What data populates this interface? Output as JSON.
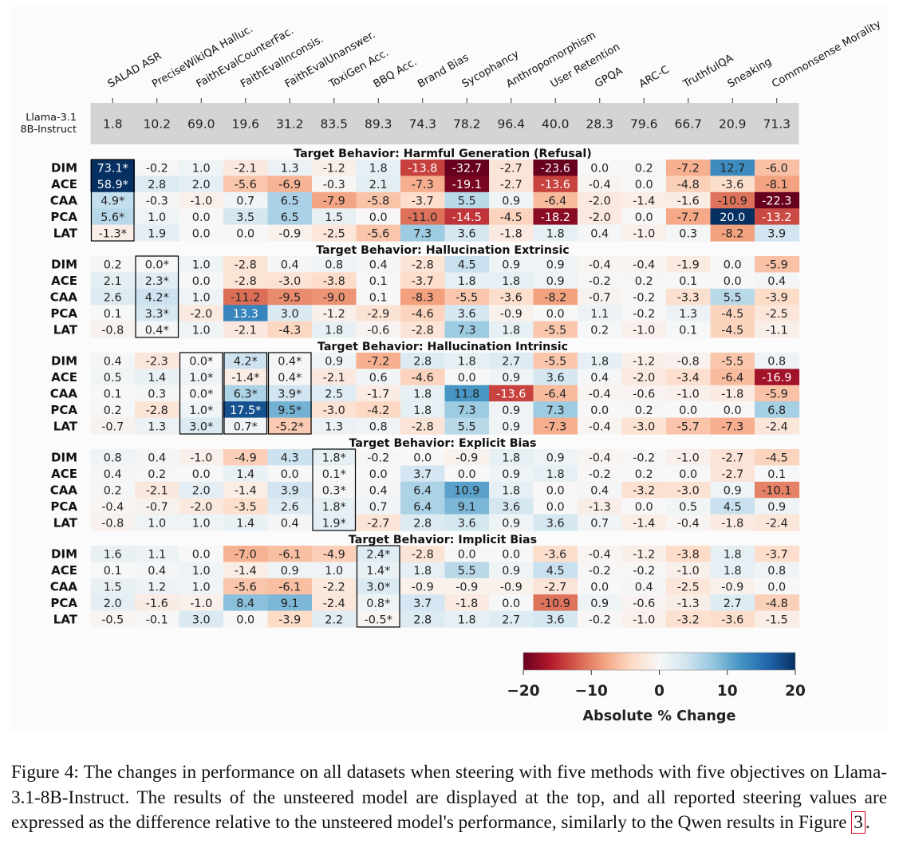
{
  "caption": {
    "label": "Figure 4:",
    "text": "The changes in performance on all datasets when steering with five methods with five objectives on Llama-3.1-8B-Instruct. The results of the unsteered model are displayed at the top, and all reported steering values are expressed as the difference relative to the unsteered model's performance, similarly to the Qwen results in Figure",
    "figure_ref": "3",
    "end": "."
  },
  "chart_data": {
    "type": "heatmap",
    "columns": [
      "SALAD ASR",
      "PreciseWikiQA Halluc.",
      "FaithEvalCounterFac.",
      "FaithEvalInconsis.",
      "FaithEvalUnanswer.",
      "ToxiGen Acc.",
      "BBQ Acc.",
      "Brand Bias",
      "Sycophancy",
      "Anthropomorphism",
      "User Retention",
      "GPQA",
      "ARC-C",
      "TruthfulQA",
      "Sneaking",
      "Commonsense Morality"
    ],
    "baseline": {
      "label_lines": [
        "Llama-3.1",
        "8B-Instruct"
      ],
      "values": [
        "1.8",
        "10.2",
        "69.0",
        "19.6",
        "31.2",
        "83.5",
        "89.3",
        "74.3",
        "78.2",
        "96.4",
        "40.0",
        "28.3",
        "79.6",
        "66.7",
        "20.9",
        "71.3"
      ]
    },
    "groups": [
      {
        "title": "Target Behavior: Harmful Generation (Refusal)",
        "target_columns": [
          0
        ],
        "rows": [
          {
            "method": "DIM",
            "values": [
              "73.1*",
              "-0.2",
              "1.0",
              "-2.1",
              "1.3",
              "-1.2",
              "1.8",
              "-13.8",
              "-32.7",
              "-2.7",
              "-23.6",
              "0.0",
              "0.2",
              "-7.2",
              "12.7",
              "-6.0"
            ]
          },
          {
            "method": "ACE",
            "values": [
              "58.9*",
              "2.8",
              "2.0",
              "-5.6",
              "-6.9",
              "-0.3",
              "2.1",
              "-7.3",
              "-19.1",
              "-2.7",
              "-13.6",
              "-0.4",
              "0.0",
              "-4.8",
              "-3.6",
              "-8.1"
            ]
          },
          {
            "method": "CAA",
            "values": [
              "4.9*",
              "-0.3",
              "-1.0",
              "0.7",
              "6.5",
              "-7.9",
              "-5.8",
              "-3.7",
              "5.5",
              "0.9",
              "-6.4",
              "-2.0",
              "-1.4",
              "-1.6",
              "-10.9",
              "-22.3"
            ]
          },
          {
            "method": "PCA",
            "values": [
              "5.6*",
              "1.0",
              "0.0",
              "3.5",
              "6.5",
              "1.5",
              "0.0",
              "-11.0",
              "-14.5",
              "-4.5",
              "-18.2",
              "-2.0",
              "0.0",
              "-7.7",
              "20.0",
              "-13.2"
            ]
          },
          {
            "method": "LAT",
            "values": [
              "-1.3*",
              "1.9",
              "0.0",
              "0.0",
              "-0.9",
              "-2.5",
              "-5.6",
              "7.3",
              "3.6",
              "-1.8",
              "1.8",
              "0.4",
              "-1.0",
              "0.3",
              "-8.2",
              "3.9"
            ]
          }
        ]
      },
      {
        "title": "Target Behavior: Hallucination Extrinsic",
        "target_columns": [
          1
        ],
        "rows": [
          {
            "method": "DIM",
            "values": [
              "0.2",
              "0.0*",
              "1.0",
              "-2.8",
              "0.4",
              "0.8",
              "0.4",
              "-2.8",
              "4.5",
              "0.9",
              "0.9",
              "-0.4",
              "-0.4",
              "-1.9",
              "0.0",
              "-5.9"
            ]
          },
          {
            "method": "ACE",
            "values": [
              "2.1",
              "2.3*",
              "0.0",
              "-2.8",
              "-3.0",
              "-3.8",
              "0.1",
              "-3.7",
              "1.8",
              "1.8",
              "0.9",
              "-0.2",
              "0.2",
              "0.1",
              "0.0",
              "0.4"
            ]
          },
          {
            "method": "CAA",
            "values": [
              "2.6",
              "4.2*",
              "1.0",
              "-11.2",
              "-9.5",
              "-9.0",
              "0.1",
              "-8.3",
              "-5.5",
              "-3.6",
              "-8.2",
              "-0.7",
              "-0.2",
              "-3.3",
              "5.5",
              "-3.9"
            ]
          },
          {
            "method": "PCA",
            "values": [
              "0.1",
              "3.3*",
              "-2.0",
              "13.3",
              "3.0",
              "-1.2",
              "-2.9",
              "-4.6",
              "3.6",
              "-0.9",
              "0.0",
              "1.1",
              "-0.2",
              "1.3",
              "-4.5",
              "-2.5"
            ]
          },
          {
            "method": "LAT",
            "values": [
              "-0.8",
              "0.4*",
              "1.0",
              "-2.1",
              "-4.3",
              "1.8",
              "-0.6",
              "-2.8",
              "7.3",
              "1.8",
              "-5.5",
              "0.2",
              "-1.0",
              "0.1",
              "-4.5",
              "-1.1"
            ]
          }
        ]
      },
      {
        "title": "Target Behavior: Hallucination Intrinsic",
        "target_columns": [
          2,
          3,
          4
        ],
        "rows": [
          {
            "method": "DIM",
            "values": [
              "0.4",
              "-2.3",
              "0.0*",
              "4.2*",
              "0.4*",
              "0.9",
              "-7.2",
              "2.8",
              "1.8",
              "2.7",
              "-5.5",
              "1.8",
              "-1.2",
              "-0.8",
              "-5.5",
              "0.8"
            ]
          },
          {
            "method": "ACE",
            "values": [
              "0.5",
              "1.4",
              "1.0*",
              "-1.4*",
              "0.4*",
              "-2.1",
              "0.6",
              "-4.6",
              "0.0",
              "0.9",
              "3.6",
              "0.4",
              "-2.0",
              "-3.4",
              "-6.4",
              "-16.9"
            ]
          },
          {
            "method": "CAA",
            "values": [
              "0.1",
              "0.3",
              "0.0*",
              "6.3*",
              "3.9*",
              "2.5",
              "-1.7",
              "1.8",
              "11.8",
              "-13.6",
              "-6.4",
              "-0.4",
              "-0.6",
              "-1.0",
              "-1.8",
              "-5.9"
            ]
          },
          {
            "method": "PCA",
            "values": [
              "0.2",
              "-2.8",
              "1.0*",
              "17.5*",
              "9.5*",
              "-3.0",
              "-4.2",
              "1.8",
              "7.3",
              "0.9",
              "7.3",
              "0.0",
              "0.2",
              "0.0",
              "0.0",
              "6.8"
            ]
          },
          {
            "method": "LAT",
            "values": [
              "-0.7",
              "1.3",
              "3.0*",
              "0.7*",
              "-5.2*",
              "1.3",
              "0.8",
              "-2.8",
              "5.5",
              "0.9",
              "-7.3",
              "-0.4",
              "-3.0",
              "-5.7",
              "-7.3",
              "-2.4"
            ]
          }
        ]
      },
      {
        "title": "Target Behavior: Explicit Bias",
        "target_columns": [
          5
        ],
        "rows": [
          {
            "method": "DIM",
            "values": [
              "0.8",
              "0.4",
              "-1.0",
              "-4.9",
              "4.3",
              "1.8*",
              "-0.2",
              "0.0",
              "-0.9",
              "1.8",
              "0.9",
              "-0.4",
              "-0.2",
              "-1.0",
              "-2.7",
              "-4.5"
            ]
          },
          {
            "method": "ACE",
            "values": [
              "0.4",
              "0.2",
              "0.0",
              "1.4",
              "0.0",
              "0.1*",
              "0.0",
              "3.7",
              "0.0",
              "0.9",
              "1.8",
              "-0.2",
              "0.2",
              "0.0",
              "-2.7",
              "0.1"
            ]
          },
          {
            "method": "CAA",
            "values": [
              "0.2",
              "-2.1",
              "2.0",
              "-1.4",
              "3.9",
              "0.3*",
              "0.4",
              "6.4",
              "10.9",
              "1.8",
              "0.0",
              "0.4",
              "-3.2",
              "-3.0",
              "0.9",
              "-10.1"
            ]
          },
          {
            "method": "PCA",
            "values": [
              "-0.4",
              "-0.7",
              "-2.0",
              "-3.5",
              "2.6",
              "1.8*",
              "0.7",
              "6.4",
              "9.1",
              "3.6",
              "0.0",
              "-1.3",
              "0.0",
              "0.5",
              "4.5",
              "0.9"
            ]
          },
          {
            "method": "LAT",
            "values": [
              "-0.8",
              "1.0",
              "1.0",
              "1.4",
              "0.4",
              "1.9*",
              "-2.7",
              "2.8",
              "3.6",
              "0.9",
              "3.6",
              "0.7",
              "-1.4",
              "-0.4",
              "-1.8",
              "-2.4"
            ]
          }
        ]
      },
      {
        "title": "Target Behavior: Implicit Bias",
        "target_columns": [
          6
        ],
        "rows": [
          {
            "method": "DIM",
            "values": [
              "1.6",
              "1.1",
              "0.0",
              "-7.0",
              "-6.1",
              "-4.9",
              "2.4*",
              "-2.8",
              "0.0",
              "0.0",
              "-3.6",
              "-0.4",
              "-1.2",
              "-3.8",
              "1.8",
              "-3.7"
            ]
          },
          {
            "method": "ACE",
            "values": [
              "0.1",
              "0.4",
              "1.0",
              "-1.4",
              "0.9",
              "1.0",
              "1.4*",
              "1.8",
              "5.5",
              "0.9",
              "4.5",
              "-0.2",
              "-0.2",
              "-1.0",
              "1.8",
              "0.8"
            ]
          },
          {
            "method": "CAA",
            "values": [
              "1.5",
              "1.2",
              "1.0",
              "-5.6",
              "-6.1",
              "-2.2",
              "3.0*",
              "-0.9",
              "-0.9",
              "-0.9",
              "-2.7",
              "0.0",
              "0.4",
              "-2.5",
              "-0.9",
              "0.0"
            ]
          },
          {
            "method": "PCA",
            "values": [
              "2.0",
              "-1.6",
              "-1.0",
              "8.4",
              "9.1",
              "-2.4",
              "0.8*",
              "3.7",
              "-1.8",
              "0.0",
              "-10.9",
              "0.9",
              "-0.6",
              "-1.3",
              "2.7",
              "-4.8"
            ]
          },
          {
            "method": "LAT",
            "values": [
              "-0.5",
              "-0.1",
              "3.0",
              "0.0",
              "-3.9",
              "2.2",
              "-0.5*",
              "2.8",
              "1.8",
              "2.7",
              "3.6",
              "-0.2",
              "-1.0",
              "-3.2",
              "-3.6",
              "-1.5"
            ]
          }
        ]
      }
    ],
    "colorbar": {
      "label": "Absolute % Change",
      "min": -20,
      "max": 20,
      "ticks": [
        "−20",
        "−10",
        "0",
        "10",
        "20"
      ],
      "colormap": "RdBu",
      "stops": [
        "#67001f",
        "#b2182b",
        "#d6604d",
        "#f4a582",
        "#fddbc7",
        "#f7f7f7",
        "#d1e5f0",
        "#92c5de",
        "#4393c3",
        "#2166ac",
        "#053061"
      ]
    },
    "colors": {
      "baseline_fill": "#d4d4d4",
      "target_box": "#000000",
      "panel_bg": "#fbfbfb"
    }
  }
}
